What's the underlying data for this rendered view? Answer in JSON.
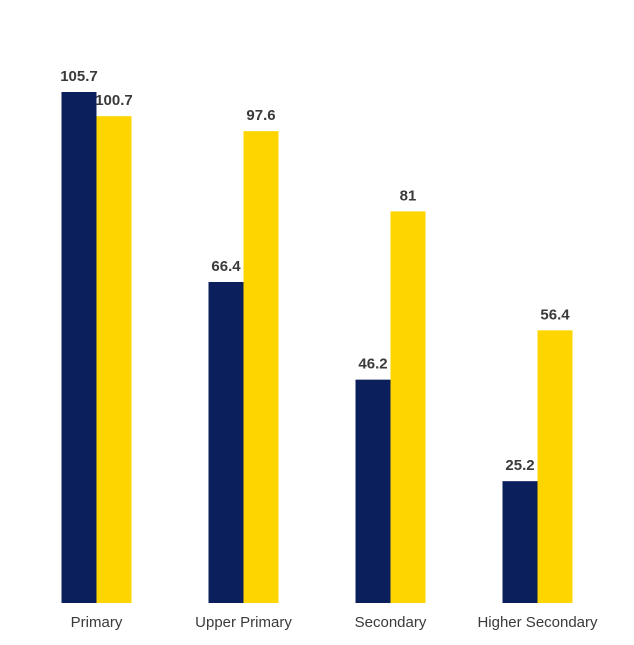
{
  "chart_data": {
    "type": "bar",
    "categories": [
      "Primary",
      "Upper Primary",
      "Secondary",
      "Higher Secondary"
    ],
    "series": [
      {
        "color": "#0b1f5c",
        "values": [
          105.7,
          66.4,
          46.2,
          25.2
        ]
      },
      {
        "color": "#ffd500",
        "values": [
          100.7,
          97.6,
          81,
          56.4
        ]
      }
    ]
  }
}
